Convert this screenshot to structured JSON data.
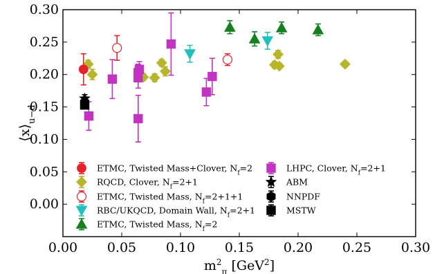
{
  "chart_data": {
    "type": "scatter",
    "title": "",
    "xlabel": "m²_π [GeV²]",
    "ylabel": "⟨x⟩_u−d",
    "xlim": [
      0.0,
      0.3
    ],
    "ylim": [
      -0.05,
      0.3
    ],
    "grid": false,
    "legend_position": "lower-left, inside axes, two columns",
    "x_ticks": [
      "0.00",
      "0.05",
      "0.10",
      "0.15",
      "0.20",
      "0.25",
      "0.30"
    ],
    "y_ticks": [
      "0.00",
      "0.05",
      "0.10",
      "0.15",
      "0.20",
      "0.25",
      "0.30"
    ],
    "series": [
      {
        "name": "ETMC, Twisted Mass+Clover, N_f=2",
        "marker": "circle",
        "color": "#e8202a",
        "filled": true,
        "points": [
          {
            "x": 0.0175,
            "y": 0.208,
            "err": 0.024
          }
        ]
      },
      {
        "name": "RQCD, Clover, N_f=2+1",
        "marker": "diamond",
        "color": "#b7b52a",
        "filled": true,
        "points": [
          {
            "x": 0.0215,
            "y": 0.216,
            "err": 0.006
          },
          {
            "x": 0.025,
            "y": 0.2,
            "err": 0.008
          },
          {
            "x": 0.0685,
            "y": 0.196,
            "err": 0.005
          },
          {
            "x": 0.078,
            "y": 0.195,
            "err": 0.006
          },
          {
            "x": 0.084,
            "y": 0.218,
            "err": 0.005
          },
          {
            "x": 0.087,
            "y": 0.205,
            "err": 0.007
          },
          {
            "x": 0.18,
            "y": 0.215,
            "err": 0.005
          },
          {
            "x": 0.183,
            "y": 0.231,
            "err": 0.006
          },
          {
            "x": 0.184,
            "y": 0.213,
            "err": 0.004
          },
          {
            "x": 0.24,
            "y": 0.216,
            "err": 0.004
          }
        ]
      },
      {
        "name": "ETMC, Twisted Mass, N_f=2+1+1",
        "marker": "circle",
        "color": "#e8202a",
        "filled": false,
        "points": [
          {
            "x": 0.046,
            "y": 0.241,
            "err": 0.019
          },
          {
            "x": 0.14,
            "y": 0.223,
            "err": 0.009
          }
        ]
      },
      {
        "name": "RBC/UKQCD, Domain Wall, N_f=2+1",
        "marker": "triangle-down",
        "color": "#20c0c0",
        "filled": true,
        "points": [
          {
            "x": 0.108,
            "y": 0.232,
            "err": 0.013
          },
          {
            "x": 0.174,
            "y": 0.252,
            "err": 0.013
          }
        ]
      },
      {
        "name": "ETMC, Twisted Mass, N_f=2",
        "marker": "triangle-up",
        "color": "#15801e",
        "filled": true,
        "points": [
          {
            "x": 0.142,
            "y": 0.273,
            "err": 0.01
          },
          {
            "x": 0.163,
            "y": 0.255,
            "err": 0.011
          },
          {
            "x": 0.186,
            "y": 0.272,
            "err": 0.009
          },
          {
            "x": 0.217,
            "y": 0.269,
            "err": 0.009
          }
        ]
      },
      {
        "name": "LHPC, Clover, N_f=2+1",
        "marker": "square",
        "color": "#c233c2",
        "filled": true,
        "points": [
          {
            "x": 0.022,
            "y": 0.136,
            "err": 0.022
          },
          {
            "x": 0.042,
            "y": 0.193,
            "err": 0.03
          },
          {
            "x": 0.064,
            "y": 0.203,
            "err": 0.013
          },
          {
            "x": 0.064,
            "y": 0.195,
            "err": 0.016
          },
          {
            "x": 0.064,
            "y": 0.132,
            "err": 0.036
          },
          {
            "x": 0.065,
            "y": 0.208,
            "err": 0.012
          },
          {
            "x": 0.092,
            "y": 0.247,
            "err": 0.048
          },
          {
            "x": 0.122,
            "y": 0.173,
            "err": 0.021
          },
          {
            "x": 0.127,
            "y": 0.197,
            "err": 0.028
          }
        ]
      },
      {
        "name": "ABM",
        "marker": "star",
        "color": "#000000",
        "filled": true,
        "points": [
          {
            "x": 0.0185,
            "y": 0.163,
            "err": 0.006
          }
        ]
      },
      {
        "name": "NNPDF",
        "marker": "hexagon",
        "color": "#000000",
        "filled": true,
        "points": [
          {
            "x": 0.0185,
            "y": 0.157,
            "err": 0.003
          }
        ]
      },
      {
        "name": "MSTW",
        "marker": "square",
        "color": "#000000",
        "filled": true,
        "points": [
          {
            "x": 0.0185,
            "y": 0.153,
            "err": 0.003
          }
        ]
      }
    ]
  },
  "legend": {
    "columns": [
      [
        {
          "series": 0,
          "text": "ETMC, Twisted Mass+Clover, N",
          "sub": "f",
          "suffix": "=2"
        },
        {
          "series": 1,
          "text": "RQCD, Clover, N",
          "sub": "f",
          "suffix": "=2+1"
        },
        {
          "series": 2,
          "text": "ETMC, Twisted Mass, N",
          "sub": "f",
          "suffix": "=2+1+1"
        },
        {
          "series": 3,
          "text": "RBC/UKQCD, Domain Wall, N",
          "sub": "f",
          "suffix": "=2+1"
        },
        {
          "series": 4,
          "text": "ETMC, Twisted Mass, N",
          "sub": "f",
          "suffix": "=2"
        }
      ],
      [
        {
          "series": 5,
          "text": "LHPC, Clover, N",
          "sub": "f",
          "suffix": "=2+1"
        },
        {
          "series": 6,
          "text": "ABM",
          "sub": "",
          "suffix": ""
        },
        {
          "series": 7,
          "text": "NNPDF",
          "sub": "",
          "suffix": ""
        },
        {
          "series": 8,
          "text": "MSTW",
          "sub": "",
          "suffix": ""
        }
      ]
    ]
  }
}
